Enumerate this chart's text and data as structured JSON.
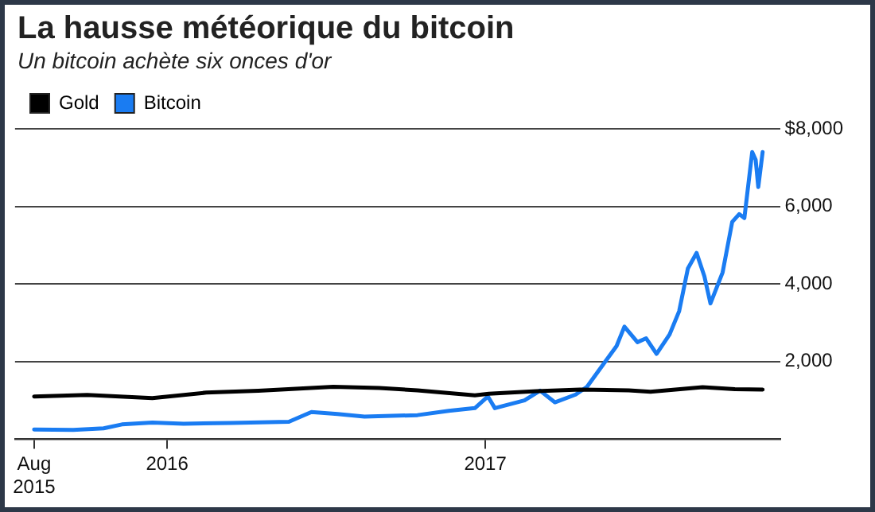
{
  "chart_data": {
    "type": "line",
    "title": "La hausse météorique du bitcoin",
    "subtitle": "Un bitcoin achète six onces d'or",
    "xlim": [
      "2015-07-10",
      "2017-12-06"
    ],
    "xticks": [
      {
        "value": "2015-08-01",
        "label": "Aug 2015"
      },
      {
        "value": "2016-01-01",
        "label": "2016"
      },
      {
        "value": "2017-01-01",
        "label": "2017"
      }
    ],
    "ylim": [
      0,
      8000
    ],
    "yticks": [
      {
        "value": 0,
        "label": null
      },
      {
        "value": 2000,
        "label": "2,000"
      },
      {
        "value": 4000,
        "label": "4,000"
      },
      {
        "value": 6000,
        "label": "6,000"
      },
      {
        "value": 8000,
        "label": "$8,000"
      }
    ],
    "grid": "y",
    "legend": "top left",
    "marker": "none",
    "line_style": "solid",
    "series": [
      {
        "name": "Gold",
        "color": "#000000",
        "x": [
          "2015-08-01",
          "2015-10-01",
          "2015-12-15",
          "2016-02-15",
          "2016-04-15",
          "2016-07-10",
          "2016-09-01",
          "2016-10-15",
          "2016-12-20",
          "2017-01-05",
          "2017-03-01",
          "2017-04-20",
          "2017-06-15",
          "2017-07-10",
          "2017-09-08",
          "2017-10-15",
          "2017-11-16"
        ],
        "values": [
          1100,
          1140,
          1060,
          1200,
          1250,
          1350,
          1320,
          1260,
          1130,
          1170,
          1240,
          1280,
          1260,
          1220,
          1340,
          1290,
          1280
        ]
      },
      {
        "name": "Bitcoin",
        "color": "#1a7cf2",
        "x": [
          "2015-08-01",
          "2015-09-15",
          "2015-10-20",
          "2015-11-10",
          "2015-12-15",
          "2016-01-20",
          "2016-03-15",
          "2016-05-20",
          "2016-06-15",
          "2016-07-15",
          "2016-08-15",
          "2016-10-15",
          "2016-11-20",
          "2016-12-20",
          "2017-01-04",
          "2017-01-12",
          "2017-02-15",
          "2017-03-05",
          "2017-03-22",
          "2017-04-15",
          "2017-04-28",
          "2017-05-19",
          "2017-06-01",
          "2017-06-10",
          "2017-06-25",
          "2017-07-05",
          "2017-07-17",
          "2017-08-01",
          "2017-08-12",
          "2017-08-22",
          "2017-09-01",
          "2017-09-10",
          "2017-09-17",
          "2017-10-01",
          "2017-10-12",
          "2017-10-20",
          "2017-10-26",
          "2017-11-04",
          "2017-11-08",
          "2017-11-11",
          "2017-11-16"
        ],
        "values": [
          250,
          240,
          280,
          380,
          430,
          400,
          420,
          450,
          700,
          650,
          580,
          620,
          730,
          800,
          1100,
          800,
          1000,
          1250,
          950,
          1150,
          1350,
          2000,
          2400,
          2900,
          2500,
          2600,
          2200,
          2700,
          3300,
          4400,
          4800,
          4200,
          3500,
          4300,
          5600,
          5800,
          5700,
          7400,
          7200,
          6500,
          7400
        ]
      }
    ]
  }
}
